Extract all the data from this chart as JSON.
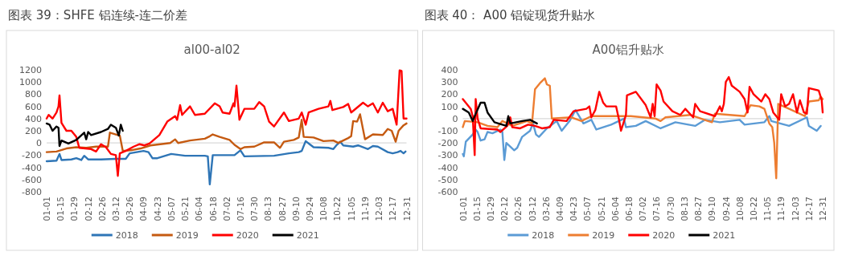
{
  "chart_data": [
    {
      "type": "line",
      "title": "图表 39：SHFE 铝连续-连二价差",
      "subtitle": "al00-al02",
      "legend": "bottom",
      "xlim": [
        "--01-01",
        "--12-31"
      ],
      "xticks": [
        {
          "value": "--01-01",
          "label": "01-01"
        },
        {
          "value": "--01-15",
          "label": "01-15"
        },
        {
          "value": "--01-29",
          "label": "01-29"
        },
        {
          "value": "--02-12",
          "label": "02-12"
        },
        {
          "value": "--02-26",
          "label": "02-26"
        },
        {
          "value": "--03-12",
          "label": "03-12"
        },
        {
          "value": "--03-26",
          "label": "03-26"
        },
        {
          "value": "--04-09",
          "label": "04-09"
        },
        {
          "value": "--04-23",
          "label": "04-23"
        },
        {
          "value": "--05-07",
          "label": "05-07"
        },
        {
          "value": "--05-21",
          "label": "05-21"
        },
        {
          "value": "--06-04",
          "label": "06-04"
        },
        {
          "value": "--06-18",
          "label": "06-18"
        },
        {
          "value": "--07-02",
          "label": "07-02"
        },
        {
          "value": "--07-16",
          "label": "07-16"
        },
        {
          "value": "--07-30",
          "label": "07-30"
        },
        {
          "value": "--08-13",
          "label": "08-13"
        },
        {
          "value": "--08-27",
          "label": "08-27"
        },
        {
          "value": "--09-10",
          "label": "09-10"
        },
        {
          "value": "--09-24",
          "label": "09-24"
        },
        {
          "value": "--10-08",
          "label": "10-08"
        },
        {
          "value": "--10-22",
          "label": "10-22"
        },
        {
          "value": "--11-05",
          "label": "11-05"
        },
        {
          "value": "--11-19",
          "label": "11-19"
        },
        {
          "value": "--12-03",
          "label": "12-03"
        },
        {
          "value": "--12-17",
          "label": "12-17"
        },
        {
          "value": "--12-31",
          "label": "12-31"
        }
      ],
      "ylim": [
        -800,
        1200
      ],
      "yticks": [
        -800,
        -600,
        -400,
        -200,
        0,
        200,
        400,
        600,
        800,
        1000,
        1200
      ],
      "ref_lines": [
        {
          "axis": "y",
          "value": 0,
          "color": "#d9d9d9"
        }
      ],
      "series": [
        {
          "name": "2018",
          "color": "#2e75b6",
          "x": [
            "--01-01",
            "--01-11",
            "--01-14",
            "--01-16",
            "--01-26",
            "--01-31",
            "--02-05",
            "--02-08",
            "--02-12",
            "--02-25",
            "--03-12",
            "--03-22",
            "--03-26",
            "--04-09",
            "--04-14",
            "--04-18",
            "--04-23",
            "--05-07",
            "--05-21",
            "--06-10",
            "--06-13",
            "--06-15",
            "--06-18",
            "--07-10",
            "--07-16",
            "--07-20",
            "--08-19",
            "--09-03",
            "--09-13",
            "--09-16",
            "--09-20",
            "--09-24",
            "--09-28",
            "--10-13",
            "--10-18",
            "--10-21",
            "--10-25",
            "--10-28",
            "--11-07",
            "--11-12",
            "--11-22",
            "--11-27",
            "--12-02",
            "--12-12",
            "--12-17",
            "--12-22",
            "--12-25",
            "--12-28",
            "--12-30"
          ],
          "values": [
            -300,
            -290,
            -180,
            -280,
            -270,
            -250,
            -280,
            -210,
            -270,
            -270,
            -260,
            -260,
            -170,
            -130,
            -150,
            -250,
            -250,
            -180,
            -210,
            -210,
            -220,
            -680,
            -200,
            -200,
            -120,
            -220,
            -210,
            -170,
            -150,
            -130,
            30,
            -20,
            -70,
            -80,
            -100,
            -40,
            20,
            -40,
            -60,
            -40,
            -100,
            -50,
            -60,
            -150,
            -170,
            -150,
            -130,
            -170,
            -140
          ]
        },
        {
          "name": "2019",
          "color": "#c55a11",
          "x": [
            "--01-01",
            "--01-11",
            "--01-21",
            "--01-31",
            "--02-10",
            "--02-20",
            "--03-04",
            "--03-06",
            "--03-12",
            "--03-16",
            "--03-19",
            "--03-27",
            "--04-06",
            "--04-16",
            "--04-26",
            "--05-06",
            "--05-11",
            "--05-14",
            "--05-26",
            "--06-10",
            "--06-15",
            "--06-18",
            "--06-25",
            "--07-05",
            "--07-10",
            "--07-16",
            "--07-20",
            "--07-30",
            "--08-09",
            "--08-19",
            "--08-25",
            "--08-29",
            "--09-08",
            "--09-13",
            "--09-16",
            "--09-18",
            "--09-28",
            "--10-08",
            "--10-18",
            "--10-23",
            "--11-02",
            "--11-05",
            "--11-07",
            "--11-11",
            "--11-14",
            "--11-19",
            "--11-27",
            "--12-07",
            "--12-12",
            "--12-16",
            "--12-20",
            "--12-23",
            "--12-28",
            "--12-31"
          ],
          "values": [
            -150,
            -140,
            -90,
            -70,
            -80,
            -60,
            -60,
            170,
            140,
            120,
            -130,
            -120,
            -90,
            -40,
            -20,
            0,
            60,
            0,
            40,
            70,
            110,
            140,
            100,
            50,
            -30,
            -100,
            -70,
            -60,
            10,
            10,
            -80,
            20,
            50,
            90,
            380,
            100,
            90,
            30,
            40,
            0,
            80,
            110,
            360,
            350,
            470,
            60,
            140,
            130,
            230,
            200,
            20,
            200,
            290,
            320
          ]
        },
        {
          "name": "2020",
          "color": "#ff0000",
          "x": [
            "--01-01",
            "--01-03",
            "--01-07",
            "--01-11",
            "--01-13",
            "--01-14",
            "--01-16",
            "--01-21",
            "--01-26",
            "--01-31",
            "--02-03",
            "--02-15",
            "--02-20",
            "--02-25",
            "--03-02",
            "--03-07",
            "--03-12",
            "--03-14",
            "--03-16",
            "--03-22",
            "--03-30",
            "--04-05",
            "--04-10",
            "--04-15",
            "--04-20",
            "--04-25",
            "--05-03",
            "--05-11",
            "--05-13",
            "--05-16",
            "--05-18",
            "--05-26",
            "--05-31",
            "--06-10",
            "--06-20",
            "--06-25",
            "--06-28",
            "--07-05",
            "--07-09",
            "--07-10",
            "--07-12",
            "--07-15",
            "--07-20",
            "--07-30",
            "--08-04",
            "--08-09",
            "--08-14",
            "--08-19",
            "--08-29",
            "--09-03",
            "--09-13",
            "--09-16",
            "--09-20",
            "--09-23",
            "--10-03",
            "--10-13",
            "--10-15",
            "--10-17",
            "--10-28",
            "--11-02",
            "--11-05",
            "--11-17",
            "--11-22",
            "--11-27",
            "--12-02",
            "--12-07",
            "--12-12",
            "--12-17",
            "--12-21",
            "--12-24",
            "--12-26",
            "--12-28",
            "--12-31"
          ],
          "values": [
            400,
            460,
            400,
            500,
            600,
            780,
            330,
            200,
            200,
            100,
            -80,
            -100,
            -140,
            -20,
            -70,
            -180,
            -200,
            -540,
            -170,
            -130,
            -60,
            -20,
            -40,
            -10,
            60,
            130,
            350,
            440,
            380,
            620,
            460,
            600,
            460,
            480,
            650,
            600,
            500,
            480,
            650,
            600,
            940,
            380,
            560,
            560,
            670,
            600,
            350,
            270,
            500,
            360,
            400,
            500,
            300,
            500,
            560,
            600,
            690,
            540,
            590,
            640,
            500,
            660,
            600,
            650,
            500,
            660,
            520,
            560,
            300,
            1190,
            1180,
            400,
            400
          ]
        },
        {
          "name": "2021",
          "color": "#000000",
          "x": [
            "--01-01",
            "--01-04",
            "--01-07",
            "--01-11",
            "--01-13",
            "--01-14",
            "--01-16",
            "--01-23",
            "--01-31",
            "--02-08",
            "--02-10",
            "--02-12",
            "--02-15",
            "--02-25",
            "--03-04",
            "--03-07",
            "--03-12",
            "--03-15",
            "--03-17",
            "--03-19"
          ],
          "values": [
            320,
            300,
            200,
            270,
            250,
            -50,
            40,
            -10,
            50,
            170,
            60,
            180,
            130,
            180,
            230,
            300,
            250,
            120,
            300,
            200
          ]
        }
      ]
    },
    {
      "type": "line",
      "title": "图表 40： A00 铝锭现货升贴水",
      "subtitle": "A00铝升贴水",
      "legend": "bottom",
      "xlim": [
        "--01-01",
        "--12-31"
      ],
      "xticks": [
        {
          "value": "--01-01",
          "label": "01-01"
        },
        {
          "value": "--01-15",
          "label": "01-15"
        },
        {
          "value": "--01-29",
          "label": "01-29"
        },
        {
          "value": "--02-12",
          "label": "02-12"
        },
        {
          "value": "--02-26",
          "label": "02-26"
        },
        {
          "value": "--03-12",
          "label": "03-12"
        },
        {
          "value": "--03-26",
          "label": "03-26"
        },
        {
          "value": "--04-09",
          "label": "04-09"
        },
        {
          "value": "--04-23",
          "label": "04-23"
        },
        {
          "value": "--05-07",
          "label": "05-07"
        },
        {
          "value": "--05-21",
          "label": "05-21"
        },
        {
          "value": "--06-04",
          "label": "06-04"
        },
        {
          "value": "--06-18",
          "label": "06-18"
        },
        {
          "value": "--07-02",
          "label": "07-02"
        },
        {
          "value": "--07-16",
          "label": "07-16"
        },
        {
          "value": "--07-30",
          "label": "07-30"
        },
        {
          "value": "--08-13",
          "label": "08-13"
        },
        {
          "value": "--08-27",
          "label": "08-27"
        },
        {
          "value": "--09-10",
          "label": "09-10"
        },
        {
          "value": "--09-24",
          "label": "09-24"
        },
        {
          "value": "--10-08",
          "label": "10-08"
        },
        {
          "value": "--10-22",
          "label": "10-22"
        },
        {
          "value": "--11-05",
          "label": "11-05"
        },
        {
          "value": "--11-19",
          "label": "11-19"
        },
        {
          "value": "--12-03",
          "label": "12-03"
        },
        {
          "value": "--12-17",
          "label": "12-17"
        },
        {
          "value": "--12-31",
          "label": "12-31"
        }
      ],
      "ylim": [
        -600,
        400
      ],
      "yticks": [
        -600,
        -500,
        -400,
        -300,
        -200,
        -100,
        0,
        100,
        200,
        300,
        400
      ],
      "ref_lines": [
        {
          "axis": "y",
          "value": 0,
          "color": "#d9d9d9"
        }
      ],
      "series": [
        {
          "name": "2018",
          "color": "#5b9bd5",
          "x": [
            "--01-01",
            "--01-02",
            "--01-04",
            "--01-11",
            "--01-14",
            "--01-16",
            "--01-19",
            "--01-23",
            "--01-26",
            "--01-31",
            "--02-08",
            "--02-10",
            "--02-12",
            "--02-14",
            "--02-22",
            "--02-25",
            "--03-02",
            "--03-10",
            "--03-13",
            "--03-16",
            "--03-19",
            "--03-27",
            "--04-06",
            "--04-11",
            "--04-19",
            "--04-25",
            "--05-03",
            "--05-11",
            "--05-16",
            "--05-31",
            "--06-13",
            "--06-15",
            "--06-25",
            "--07-05",
            "--07-20",
            "--08-04",
            "--08-24",
            "--09-03",
            "--09-18",
            "--10-08",
            "--10-13",
            "--11-02",
            "--11-07",
            "--11-09",
            "--11-27",
            "--12-15",
            "--12-17",
            "--12-25",
            "--12-29"
          ],
          "values": [
            -290,
            -310,
            -190,
            -130,
            -90,
            -110,
            -180,
            -170,
            -110,
            -120,
            -90,
            -110,
            -340,
            -200,
            -260,
            -240,
            -150,
            -100,
            -40,
            -130,
            -150,
            -80,
            -20,
            -100,
            -20,
            70,
            -40,
            -10,
            -90,
            -50,
            0,
            -70,
            -60,
            -20,
            -80,
            -30,
            -60,
            -10,
            -30,
            -10,
            -50,
            -30,
            20,
            -20,
            -60,
            10,
            -60,
            -100,
            -60
          ]
        },
        {
          "name": "2019",
          "color": "#ed7d31",
          "x": [
            "--01-01",
            "--01-03",
            "--01-16",
            "--01-26",
            "--02-05",
            "--02-10",
            "--02-20",
            "--03-07",
            "--03-12",
            "--03-15",
            "--03-20",
            "--03-25",
            "--03-27",
            "--03-30",
            "--04-01",
            "--04-21",
            "--05-01",
            "--05-11",
            "--06-20",
            "--07-15",
            "--07-20",
            "--07-25",
            "--08-19",
            "--09-06",
            "--09-10",
            "--09-13",
            "--10-13",
            "--10-19",
            "--10-28",
            "--11-02",
            "--11-07",
            "--11-10",
            "--11-12",
            "--11-14",
            "--11-16",
            "--11-27",
            "--12-13",
            "--12-17",
            "--12-27",
            "--12-29",
            "--12-31"
          ],
          "values": [
            -70,
            -20,
            -30,
            -60,
            -70,
            -20,
            -60,
            -20,
            -40,
            240,
            290,
            330,
            280,
            270,
            0,
            10,
            -20,
            20,
            20,
            0,
            -20,
            10,
            30,
            -20,
            -30,
            40,
            20,
            110,
            100,
            80,
            -40,
            -70,
            -200,
            -490,
            120,
            80,
            20,
            140,
            150,
            180,
            160
          ]
        },
        {
          "name": "2020",
          "color": "#ff0000",
          "x": [
            "--01-01",
            "--01-09",
            "--01-11",
            "--01-13",
            "--01-14",
            "--01-16",
            "--01-19",
            "--02-05",
            "--02-08",
            "--02-15",
            "--02-18",
            "--02-20",
            "--02-28",
            "--03-08",
            "--03-15",
            "--03-22",
            "--03-30",
            "--04-03",
            "--04-16",
            "--04-23",
            "--05-06",
            "--05-09",
            "--05-11",
            "--05-15",
            "--05-19",
            "--05-23",
            "--05-26",
            "--06-05",
            "--06-08",
            "--06-10",
            "--06-15",
            "--06-16",
            "--06-25",
            "--07-05",
            "--07-10",
            "--07-12",
            "--07-14",
            "--07-16",
            "--07-20",
            "--07-23",
            "--08-01",
            "--08-09",
            "--08-14",
            "--08-22",
            "--08-24",
            "--08-29",
            "--09-13",
            "--09-18",
            "--09-20",
            "--09-22",
            "--09-24",
            "--09-27",
            "--09-30",
            "--10-08",
            "--10-13",
            "--10-16",
            "--10-18",
            "--10-22",
            "--10-30",
            "--11-03",
            "--11-07",
            "--11-11",
            "--11-17",
            "--11-19",
            "--11-23",
            "--11-27",
            "--12-01",
            "--12-05",
            "--12-08",
            "--12-12",
            "--12-15",
            "--12-17",
            "--12-27",
            "--12-30",
            "--12-31"
          ],
          "values": [
            160,
            80,
            20,
            -300,
            160,
            0,
            -80,
            -90,
            -110,
            -60,
            10,
            -70,
            -80,
            -50,
            -60,
            -80,
            -70,
            -10,
            -20,
            60,
            80,
            100,
            10,
            70,
            220,
            130,
            100,
            100,
            -10,
            -100,
            30,
            190,
            220,
            110,
            10,
            120,
            20,
            280,
            230,
            140,
            60,
            30,
            80,
            10,
            120,
            60,
            20,
            100,
            60,
            120,
            300,
            340,
            270,
            220,
            160,
            50,
            260,
            200,
            140,
            200,
            160,
            50,
            -10,
            200,
            100,
            120,
            200,
            50,
            150,
            50,
            40,
            250,
            230,
            150,
            50
          ]
        },
        {
          "name": "2021",
          "color": "#000000",
          "x": [
            "--01-01",
            "--01-07",
            "--01-11",
            "--01-13",
            "--01-19",
            "--01-23",
            "--01-26",
            "--02-02",
            "--02-14",
            "--02-16",
            "--02-18",
            "--03-02",
            "--03-10",
            "--03-17"
          ],
          "values": [
            80,
            50,
            -20,
            20,
            130,
            130,
            50,
            -30,
            -60,
            20,
            -40,
            -20,
            -10,
            -40
          ]
        }
      ]
    }
  ]
}
